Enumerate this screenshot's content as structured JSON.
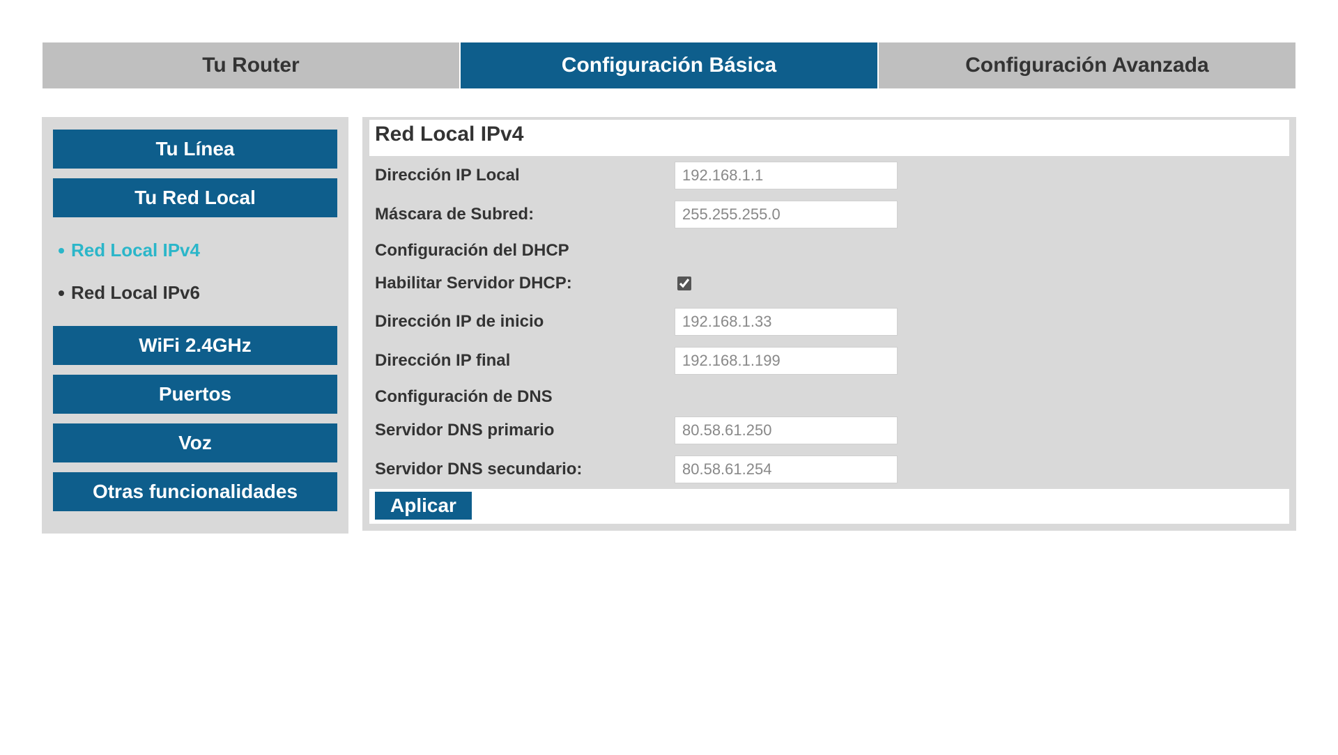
{
  "tabs": [
    {
      "label": "Tu Router",
      "active": false
    },
    {
      "label": "Configuración Básica",
      "active": true
    },
    {
      "label": "Configuración Avanzada",
      "active": false
    }
  ],
  "sidebar": {
    "items": [
      {
        "label": "Tu Línea",
        "type": "button"
      },
      {
        "label": "Tu Red Local",
        "type": "button"
      },
      {
        "label": "Red Local IPv4",
        "type": "sub",
        "active": true
      },
      {
        "label": "Red Local IPv6",
        "type": "sub",
        "active": false
      },
      {
        "label": "WiFi 2.4GHz",
        "type": "button"
      },
      {
        "label": "Puertos",
        "type": "button"
      },
      {
        "label": "Voz",
        "type": "button"
      },
      {
        "label": "Otras funcionalidades",
        "type": "button"
      }
    ]
  },
  "content": {
    "title": "Red Local IPv4",
    "groups": [
      {
        "heading": null,
        "rows": [
          {
            "label": "Dirección IP Local",
            "value": "192.168.1.1",
            "kind": "text"
          },
          {
            "label": "Máscara de Subred:",
            "value": "255.255.255.0",
            "kind": "text"
          }
        ]
      },
      {
        "heading": "Configuración del DHCP",
        "rows": [
          {
            "label": "Habilitar Servidor DHCP:",
            "value": true,
            "kind": "checkbox"
          },
          {
            "label": "Dirección IP de inicio",
            "value": "192.168.1.33",
            "kind": "text"
          },
          {
            "label": "Dirección IP final",
            "value": "192.168.1.199",
            "kind": "text"
          }
        ]
      },
      {
        "heading": "Configuración de DNS",
        "rows": [
          {
            "label": "Servidor DNS primario",
            "value": "80.58.61.250",
            "kind": "text"
          },
          {
            "label": "Servidor DNS secundario:",
            "value": "80.58.61.254",
            "kind": "text"
          }
        ]
      }
    ],
    "apply_label": "Aplicar"
  },
  "colors": {
    "primary": "#0e5e8c",
    "tab_inactive_bg": "#bfbfbf",
    "panel_bg": "#d9d9d9",
    "sub_active": "#2bb6c9",
    "input_text": "#888888"
  }
}
